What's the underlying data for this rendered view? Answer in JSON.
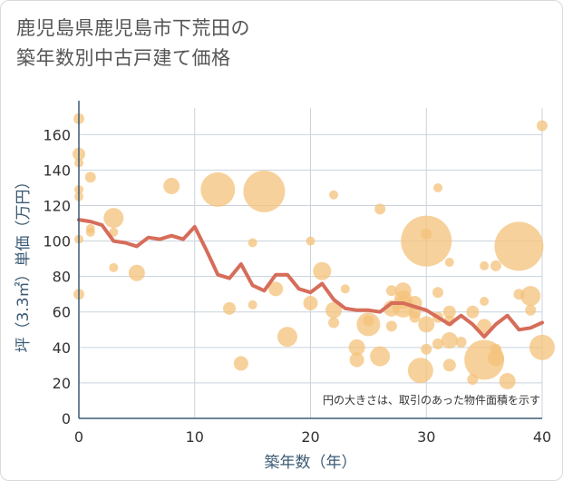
{
  "title": {
    "line1": "鹿児島県鹿児島市下荒田の",
    "line2": "築年数別中古戸建て価格"
  },
  "chart_data": {
    "type": "scatter",
    "title": "鹿児島県鹿児島市下荒田の築年数別中古戸建て価格",
    "xlabel": "築年数（年）",
    "ylabel": "坪（3.3㎡）単価（万円）",
    "xlim": [
      0,
      40
    ],
    "ylim": [
      0,
      175
    ],
    "x_ticks": [
      0,
      10,
      20,
      30,
      40
    ],
    "y_ticks": [
      0,
      20,
      40,
      60,
      80,
      100,
      120,
      140,
      160
    ],
    "grid": true,
    "note": "円の大きさは、取引のあった物件面積を示す",
    "colors": {
      "bubble": "#f4c27a",
      "line": "#d66d5a",
      "grid": "#c9d3dc",
      "axis": "#3b5a73"
    },
    "bubbles": [
      {
        "x": 0,
        "y": 169,
        "s": 6
      },
      {
        "x": 0,
        "y": 149,
        "s": 7
      },
      {
        "x": 0,
        "y": 144,
        "s": 5
      },
      {
        "x": 0,
        "y": 129,
        "s": 5
      },
      {
        "x": 0,
        "y": 125,
        "s": 5
      },
      {
        "x": 0,
        "y": 101,
        "s": 5
      },
      {
        "x": 0,
        "y": 70,
        "s": 6
      },
      {
        "x": 1,
        "y": 136,
        "s": 6
      },
      {
        "x": 1,
        "y": 107,
        "s": 5
      },
      {
        "x": 1,
        "y": 105,
        "s": 5
      },
      {
        "x": 3,
        "y": 113,
        "s": 11
      },
      {
        "x": 3,
        "y": 105,
        "s": 5
      },
      {
        "x": 3,
        "y": 85,
        "s": 5
      },
      {
        "x": 5,
        "y": 82,
        "s": 9
      },
      {
        "x": 8,
        "y": 131,
        "s": 9
      },
      {
        "x": 12,
        "y": 129,
        "s": 19
      },
      {
        "x": 13,
        "y": 62,
        "s": 7
      },
      {
        "x": 14,
        "y": 31,
        "s": 8
      },
      {
        "x": 15,
        "y": 99,
        "s": 5
      },
      {
        "x": 15,
        "y": 64,
        "s": 5
      },
      {
        "x": 16,
        "y": 128,
        "s": 23
      },
      {
        "x": 17,
        "y": 73,
        "s": 8
      },
      {
        "x": 18,
        "y": 46,
        "s": 11
      },
      {
        "x": 20,
        "y": 100,
        "s": 5
      },
      {
        "x": 20,
        "y": 65,
        "s": 8
      },
      {
        "x": 21,
        "y": 83,
        "s": 10
      },
      {
        "x": 22,
        "y": 126,
        "s": 5
      },
      {
        "x": 22,
        "y": 61,
        "s": 9
      },
      {
        "x": 22,
        "y": 54,
        "s": 6
      },
      {
        "x": 23,
        "y": 73,
        "s": 5
      },
      {
        "x": 24,
        "y": 40,
        "s": 9
      },
      {
        "x": 24,
        "y": 33,
        "s": 8
      },
      {
        "x": 25,
        "y": 55,
        "s": 6
      },
      {
        "x": 25,
        "y": 53,
        "s": 13
      },
      {
        "x": 26,
        "y": 118,
        "s": 6
      },
      {
        "x": 26,
        "y": 35,
        "s": 11
      },
      {
        "x": 27,
        "y": 62,
        "s": 9
      },
      {
        "x": 27,
        "y": 52,
        "s": 6
      },
      {
        "x": 27,
        "y": 72,
        "s": 6
      },
      {
        "x": 28,
        "y": 72,
        "s": 9
      },
      {
        "x": 28,
        "y": 67,
        "s": 10
      },
      {
        "x": 28,
        "y": 63,
        "s": 12
      },
      {
        "x": 29,
        "y": 65,
        "s": 8
      },
      {
        "x": 29,
        "y": 60,
        "s": 7
      },
      {
        "x": 29,
        "y": 57,
        "s": 6
      },
      {
        "x": 29.5,
        "y": 27,
        "s": 14
      },
      {
        "x": 30,
        "y": 100,
        "s": 28
      },
      {
        "x": 30,
        "y": 104,
        "s": 6
      },
      {
        "x": 30,
        "y": 53,
        "s": 9
      },
      {
        "x": 30,
        "y": 39,
        "s": 6
      },
      {
        "x": 31,
        "y": 130,
        "s": 5
      },
      {
        "x": 31,
        "y": 71,
        "s": 6
      },
      {
        "x": 31,
        "y": 57,
        "s": 6
      },
      {
        "x": 31,
        "y": 42,
        "s": 6
      },
      {
        "x": 32,
        "y": 88,
        "s": 5
      },
      {
        "x": 32,
        "y": 60,
        "s": 7
      },
      {
        "x": 32,
        "y": 55,
        "s": 6
      },
      {
        "x": 32,
        "y": 44,
        "s": 9
      },
      {
        "x": 32,
        "y": 30,
        "s": 7
      },
      {
        "x": 33,
        "y": 43,
        "s": 6
      },
      {
        "x": 34,
        "y": 60,
        "s": 7
      },
      {
        "x": 34,
        "y": 22,
        "s": 6
      },
      {
        "x": 35,
        "y": 86,
        "s": 5
      },
      {
        "x": 35,
        "y": 66,
        "s": 5
      },
      {
        "x": 35,
        "y": 52,
        "s": 8
      },
      {
        "x": 35,
        "y": 33,
        "s": 22
      },
      {
        "x": 36,
        "y": 86,
        "s": 6
      },
      {
        "x": 36,
        "y": 39,
        "s": 6
      },
      {
        "x": 36,
        "y": 34,
        "s": 9
      },
      {
        "x": 37,
        "y": 21,
        "s": 9
      },
      {
        "x": 38,
        "y": 97,
        "s": 27
      },
      {
        "x": 38,
        "y": 70,
        "s": 6
      },
      {
        "x": 39,
        "y": 69,
        "s": 11
      },
      {
        "x": 39,
        "y": 61,
        "s": 6
      },
      {
        "x": 40,
        "y": 165,
        "s": 6
      },
      {
        "x": 40,
        "y": 40,
        "s": 14
      }
    ],
    "series": [
      {
        "x": [
          0,
          1,
          2,
          3,
          4,
          5,
          6,
          7,
          8,
          9,
          10,
          11,
          12,
          13,
          14,
          15,
          16,
          17,
          18,
          19,
          20,
          21,
          22,
          23,
          24,
          25,
          26,
          27,
          28,
          29,
          30,
          31,
          32,
          33,
          34,
          35,
          36,
          37,
          38,
          39,
          40
        ],
        "values": [
          112,
          111,
          109,
          100,
          99,
          97,
          102,
          101,
          103,
          101,
          108,
          95,
          81,
          79,
          87,
          75,
          72,
          81,
          81,
          73,
          71,
          76,
          67,
          62,
          61,
          61,
          60,
          65,
          65,
          63,
          61,
          57,
          53,
          58,
          53,
          46,
          53,
          58,
          50,
          51,
          54
        ]
      }
    ]
  }
}
